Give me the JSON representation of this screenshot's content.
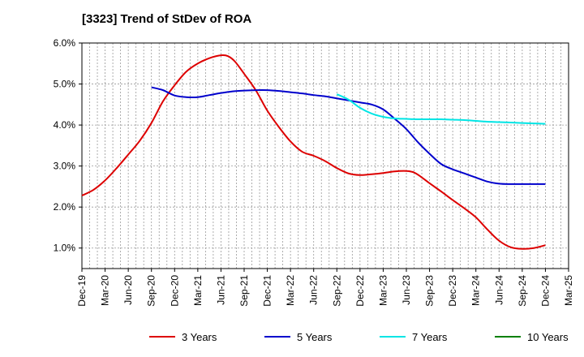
{
  "chart_data": {
    "type": "line",
    "title": "[3323]  Trend of StDev of ROA",
    "xlabel": "",
    "ylabel": "",
    "ylim": [
      0.5,
      6.0
    ],
    "y_ticks": [
      1.0,
      2.0,
      3.0,
      4.0,
      5.0,
      6.0
    ],
    "y_tick_labels": [
      "1.0%",
      "2.0%",
      "3.0%",
      "4.0%",
      "5.0%",
      "6.0%"
    ],
    "x_ticks": [
      "Dec-19",
      "Mar-20",
      "Jun-20",
      "Sep-20",
      "Dec-20",
      "Mar-21",
      "Jun-21",
      "Sep-21",
      "Dec-21",
      "Mar-22",
      "Jun-22",
      "Sep-22",
      "Dec-22",
      "Mar-23",
      "Jun-23",
      "Sep-23",
      "Dec-23",
      "Mar-24",
      "Jun-24",
      "Sep-24",
      "Dec-24",
      "Mar-25"
    ],
    "grid": true,
    "legend_position": "bottom",
    "series": [
      {
        "name": "3 Years",
        "color": "#dd0000",
        "points": [
          [
            0,
            2.28
          ],
          [
            0.5,
            2.42
          ],
          [
            1,
            2.65
          ],
          [
            1.5,
            2.95
          ],
          [
            2,
            3.28
          ],
          [
            2.5,
            3.62
          ],
          [
            3,
            4.05
          ],
          [
            3.5,
            4.58
          ],
          [
            4,
            4.97
          ],
          [
            4.5,
            5.3
          ],
          [
            5,
            5.5
          ],
          [
            5.5,
            5.63
          ],
          [
            6,
            5.7
          ],
          [
            6.3,
            5.68
          ],
          [
            6.6,
            5.55
          ],
          [
            7,
            5.25
          ],
          [
            7.5,
            4.85
          ],
          [
            8,
            4.35
          ],
          [
            8.5,
            3.95
          ],
          [
            9,
            3.6
          ],
          [
            9.5,
            3.35
          ],
          [
            10,
            3.25
          ],
          [
            10.5,
            3.12
          ],
          [
            11,
            2.95
          ],
          [
            11.5,
            2.82
          ],
          [
            12,
            2.78
          ],
          [
            12.5,
            2.8
          ],
          [
            13,
            2.83
          ],
          [
            13.5,
            2.87
          ],
          [
            14,
            2.88
          ],
          [
            14.3,
            2.85
          ],
          [
            14.6,
            2.75
          ],
          [
            15,
            2.58
          ],
          [
            15.5,
            2.38
          ],
          [
            16,
            2.17
          ],
          [
            16.5,
            1.97
          ],
          [
            17,
            1.75
          ],
          [
            17.5,
            1.45
          ],
          [
            18,
            1.18
          ],
          [
            18.5,
            1.02
          ],
          [
            19,
            0.98
          ],
          [
            19.5,
            1.0
          ],
          [
            20,
            1.07
          ]
        ]
      },
      {
        "name": "5 Years",
        "color": "#0000cc",
        "points": [
          [
            3,
            4.92
          ],
          [
            3.5,
            4.85
          ],
          [
            4,
            4.72
          ],
          [
            4.5,
            4.68
          ],
          [
            5,
            4.68
          ],
          [
            5.5,
            4.73
          ],
          [
            6,
            4.78
          ],
          [
            6.5,
            4.82
          ],
          [
            7,
            4.84
          ],
          [
            7.5,
            4.85
          ],
          [
            8,
            4.85
          ],
          [
            8.5,
            4.83
          ],
          [
            9,
            4.8
          ],
          [
            9.5,
            4.77
          ],
          [
            10,
            4.73
          ],
          [
            10.5,
            4.7
          ],
          [
            11,
            4.65
          ],
          [
            11.5,
            4.6
          ],
          [
            12,
            4.55
          ],
          [
            12.5,
            4.5
          ],
          [
            13,
            4.38
          ],
          [
            13.5,
            4.15
          ],
          [
            14,
            3.9
          ],
          [
            14.5,
            3.58
          ],
          [
            15,
            3.3
          ],
          [
            15.5,
            3.05
          ],
          [
            16,
            2.92
          ],
          [
            16.5,
            2.82
          ],
          [
            17,
            2.72
          ],
          [
            17.5,
            2.62
          ],
          [
            18,
            2.57
          ],
          [
            18.5,
            2.56
          ],
          [
            19,
            2.56
          ],
          [
            19.5,
            2.56
          ],
          [
            20,
            2.56
          ]
        ]
      },
      {
        "name": "7 Years",
        "color": "#00e5e5",
        "points": [
          [
            11,
            4.75
          ],
          [
            11.5,
            4.62
          ],
          [
            12,
            4.42
          ],
          [
            12.5,
            4.28
          ],
          [
            13,
            4.2
          ],
          [
            13.5,
            4.16
          ],
          [
            14,
            4.15
          ],
          [
            14.5,
            4.14
          ],
          [
            15,
            4.14
          ],
          [
            15.5,
            4.14
          ],
          [
            16,
            4.13
          ],
          [
            16.5,
            4.12
          ],
          [
            17,
            4.1
          ],
          [
            17.5,
            4.08
          ],
          [
            18,
            4.07
          ],
          [
            18.5,
            4.06
          ],
          [
            19,
            4.05
          ],
          [
            19.5,
            4.04
          ],
          [
            20,
            4.03
          ]
        ]
      },
      {
        "name": "10 Years",
        "color": "#008000",
        "points": []
      }
    ]
  }
}
